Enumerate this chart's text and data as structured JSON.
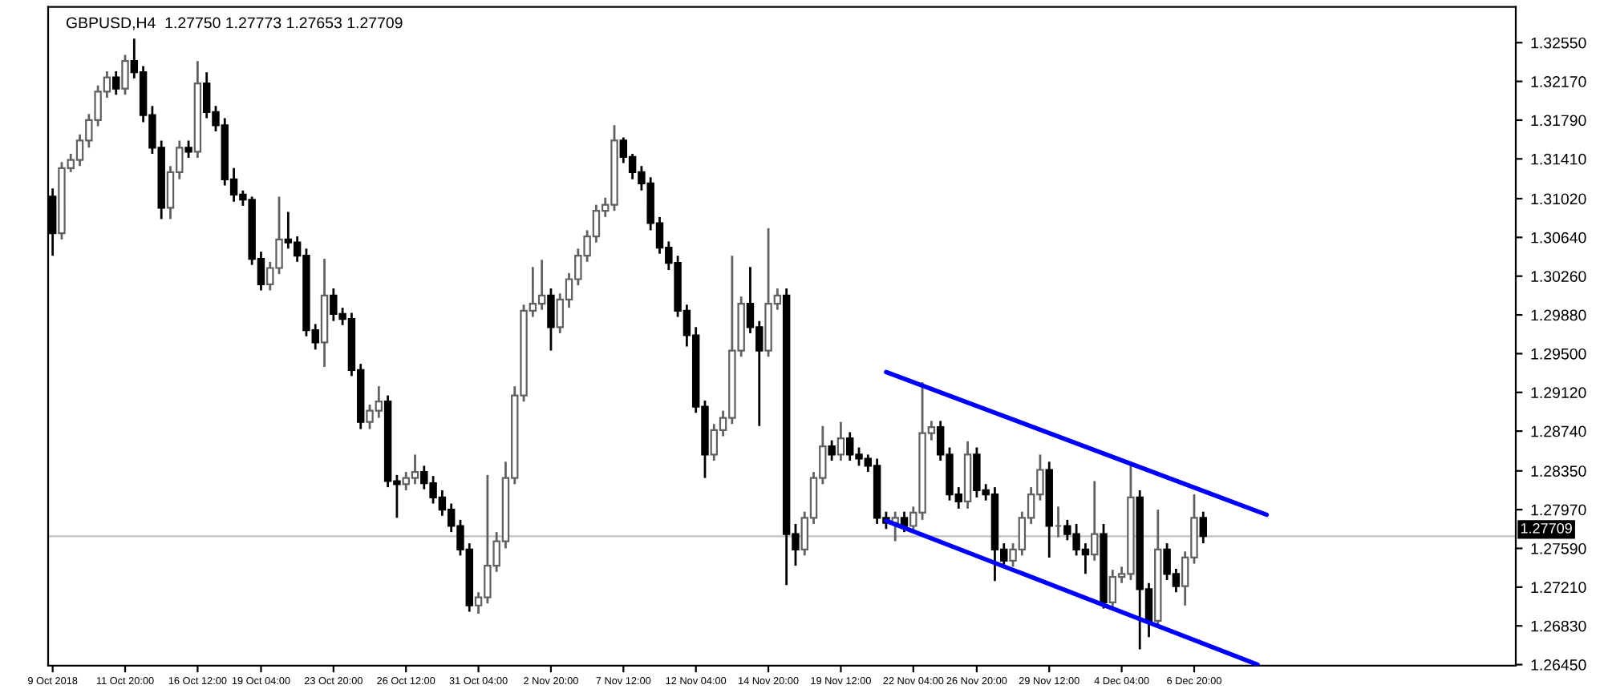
{
  "chart_data": {
    "type": "candlestick",
    "title": "GBPUSD,H4  1.27750 1.27773 1.27653 1.27709",
    "categories": [
      "9 Oct 2018",
      null,
      null,
      null,
      null,
      null,
      null,
      null,
      "11 Oct 20:00",
      null,
      null,
      null,
      null,
      null,
      null,
      null,
      "16 Oct 12:00",
      null,
      null,
      null,
      null,
      null,
      null,
      "19 Oct 04:00",
      null,
      null,
      null,
      null,
      null,
      null,
      null,
      "23 Oct 20:00",
      null,
      null,
      null,
      null,
      null,
      null,
      null,
      "26 Oct 12:00",
      null,
      null,
      null,
      null,
      null,
      null,
      null,
      "31 Oct 04:00",
      null,
      null,
      null,
      null,
      null,
      null,
      null,
      "2 Nov 20:00",
      null,
      null,
      null,
      null,
      null,
      null,
      null,
      "7 Nov 12:00",
      null,
      null,
      null,
      null,
      null,
      null,
      null,
      "12 Nov 04:00",
      null,
      null,
      null,
      null,
      null,
      null,
      null,
      "14 Nov 20:00",
      null,
      null,
      null,
      null,
      null,
      null,
      null,
      "19 Nov 12:00",
      null,
      null,
      null,
      null,
      null,
      null,
      null,
      "22 Nov 04:00",
      null,
      null,
      null,
      null,
      null,
      null,
      "26 Nov 20:00",
      null,
      null,
      null,
      null,
      null,
      null,
      null,
      "29 Nov 12:00",
      null,
      null,
      null,
      null,
      null,
      null,
      null,
      "4 Dec 04:00",
      null,
      null,
      null,
      null,
      null,
      null,
      null,
      "6 Dec 20:00",
      null,
      null,
      null,
      null,
      null,
      null,
      null,
      null,
      null,
      null,
      null,
      null,
      null,
      null,
      null,
      null,
      null,
      null,
      null,
      null,
      null,
      null,
      null,
      null,
      null,
      null,
      null,
      null,
      null,
      null,
      null,
      null,
      null,
      null,
      null
    ],
    "ohlc": [
      [
        1.3104,
        1.3112,
        1.3046,
        1.3068
      ],
      [
        1.3068,
        1.3138,
        1.3062,
        1.3132
      ],
      [
        1.3132,
        1.3146,
        1.3128,
        1.314
      ],
      [
        1.314,
        1.3165,
        1.3134,
        1.3159
      ],
      [
        1.3159,
        1.3185,
        1.3152,
        1.3179
      ],
      [
        1.3179,
        1.3213,
        1.3173,
        1.3207
      ],
      [
        1.3207,
        1.3227,
        1.3201,
        1.3221
      ],
      [
        1.3221,
        1.3227,
        1.3204,
        1.321
      ],
      [
        1.321,
        1.3243,
        1.3204,
        1.3237
      ],
      [
        1.3237,
        1.3259,
        1.322,
        1.3226
      ],
      [
        1.3226,
        1.3232,
        1.3177,
        1.3184
      ],
      [
        1.3184,
        1.3193,
        1.3146,
        1.3152
      ],
      [
        1.3152,
        1.3159,
        1.3082,
        1.3093
      ],
      [
        1.3093,
        1.3134,
        1.3082,
        1.3128
      ],
      [
        1.3128,
        1.3159,
        1.3121,
        1.3152
      ],
      [
        1.3152,
        1.3159,
        1.3142,
        1.3148
      ],
      [
        1.3148,
        1.3237,
        1.3142,
        1.3215
      ],
      [
        1.3215,
        1.3226,
        1.3181,
        1.3187
      ],
      [
        1.3187,
        1.3193,
        1.3168,
        1.3174
      ],
      [
        1.3174,
        1.3181,
        1.3115,
        1.3121
      ],
      [
        1.3121,
        1.3132,
        1.3099,
        1.3106
      ],
      [
        1.3106,
        1.311,
        1.3095,
        1.3101
      ],
      [
        1.3101,
        1.3104,
        1.3037,
        1.3043
      ],
      [
        1.3043,
        1.305,
        1.3012,
        1.3018
      ],
      [
        1.3018,
        1.304,
        1.3012,
        1.3034
      ],
      [
        1.3034,
        1.3104,
        1.3028,
        1.3062
      ],
      [
        1.3062,
        1.3089,
        1.3053,
        1.3059
      ],
      [
        1.3059,
        1.3065,
        1.304,
        1.3046
      ],
      [
        1.3046,
        1.3053,
        1.2967,
        1.2973
      ],
      [
        1.2973,
        1.2979,
        1.2954,
        1.2961
      ],
      [
        1.2961,
        1.3043,
        1.2937,
        1.3007
      ],
      [
        1.3007,
        1.3014,
        1.2982,
        1.2989
      ],
      [
        1.2989,
        1.2995,
        1.2978,
        1.2984
      ],
      [
        1.2984,
        1.299,
        1.2928,
        1.2934
      ],
      [
        1.2934,
        1.294,
        1.2876,
        1.2883
      ],
      [
        1.2883,
        1.29,
        1.2876,
        1.2894
      ],
      [
        1.2894,
        1.2918,
        1.2887,
        1.2903
      ],
      [
        1.2903,
        1.2909,
        1.2819,
        1.2825
      ],
      [
        1.2825,
        1.2831,
        1.2789,
        1.2822
      ],
      [
        1.2822,
        1.2834,
        1.2816,
        1.2828
      ],
      [
        1.2828,
        1.2851,
        1.2822,
        1.2834
      ],
      [
        1.2834,
        1.284,
        1.2817,
        1.2823
      ],
      [
        1.2823,
        1.283,
        1.2803,
        1.2809
      ],
      [
        1.2809,
        1.2816,
        1.2791,
        1.2797
      ],
      [
        1.2797,
        1.2803,
        1.2775,
        1.2781
      ],
      [
        1.2781,
        1.2787,
        1.2752,
        1.2758
      ],
      [
        1.2758,
        1.2764,
        1.2697,
        1.2703
      ],
      [
        1.2703,
        1.2716,
        1.2695,
        1.2711
      ],
      [
        1.2711,
        1.2831,
        1.2705,
        1.2742
      ],
      [
        1.2742,
        1.2775,
        1.2736,
        1.2766
      ],
      [
        1.2766,
        1.2844,
        1.2759,
        1.2828
      ],
      [
        1.2828,
        1.2918,
        1.2822,
        1.2909
      ],
      [
        1.2909,
        1.2998,
        1.2903,
        1.2992
      ],
      [
        1.2992,
        1.3035,
        1.2986,
        1.2999
      ],
      [
        1.2999,
        1.3042,
        1.2993,
        1.3007
      ],
      [
        1.3007,
        1.3014,
        1.2953,
        1.2976
      ],
      [
        1.2976,
        1.3009,
        1.297,
        1.3003
      ],
      [
        1.3003,
        1.3029,
        1.2995,
        1.3023
      ],
      [
        1.3023,
        1.3053,
        1.3017,
        1.3046
      ],
      [
        1.3046,
        1.3071,
        1.304,
        1.3065
      ],
      [
        1.3065,
        1.3096,
        1.3059,
        1.309
      ],
      [
        1.309,
        1.3103,
        1.3084,
        1.3096
      ],
      [
        1.3096,
        1.3174,
        1.309,
        1.3159
      ],
      [
        1.3159,
        1.3162,
        1.3137,
        1.3143
      ],
      [
        1.3143,
        1.3146,
        1.3121,
        1.3128
      ],
      [
        1.3128,
        1.3134,
        1.311,
        1.3117
      ],
      [
        1.3117,
        1.3123,
        1.3071,
        1.3078
      ],
      [
        1.3078,
        1.3084,
        1.3048,
        1.3054
      ],
      [
        1.3054,
        1.306,
        1.3032,
        1.3039
      ],
      [
        1.3039,
        1.3046,
        1.2986,
        1.2992
      ],
      [
        1.2992,
        1.2998,
        1.2957,
        1.2968
      ],
      [
        1.2968,
        1.2976,
        1.2892,
        1.2898
      ],
      [
        1.2898,
        1.2904,
        1.2828,
        1.2851
      ],
      [
        1.2851,
        1.2881,
        1.2845,
        1.2875
      ],
      [
        1.2875,
        1.2894,
        1.2869,
        1.2887
      ],
      [
        1.2887,
        1.3046,
        1.2881,
        1.2953
      ],
      [
        1.2953,
        1.3006,
        1.2947,
        1.2999
      ],
      [
        1.2999,
        1.3035,
        1.297,
        1.2976
      ],
      [
        1.2976,
        1.2982,
        1.2879,
        1.2953
      ],
      [
        1.2953,
        1.3073,
        1.2947,
        1.2999
      ],
      [
        1.2999,
        1.3014,
        1.2993,
        1.3007
      ],
      [
        1.3007,
        1.3014,
        1.2723,
        1.2773
      ],
      [
        1.2773,
        1.2783,
        1.2742,
        1.2758
      ],
      [
        1.2758,
        1.2795,
        1.2752,
        1.2789
      ],
      [
        1.2789,
        1.2834,
        1.2783,
        1.2828
      ],
      [
        1.2828,
        1.2879,
        1.2822,
        1.2859
      ],
      [
        1.2859,
        1.2865,
        1.2845,
        1.2851
      ],
      [
        1.2851,
        1.2883,
        1.2845,
        1.2867
      ],
      [
        1.2867,
        1.2873,
        1.2845,
        1.2851
      ],
      [
        1.2851,
        1.2858,
        1.284,
        1.2847
      ],
      [
        1.2847,
        1.2851,
        1.2834,
        1.284
      ],
      [
        1.284,
        1.2847,
        1.2783,
        1.2789
      ],
      [
        1.2789,
        1.2795,
        1.2778,
        1.2784
      ],
      [
        1.2784,
        1.2795,
        1.2766,
        1.2789
      ],
      [
        1.2789,
        1.2795,
        1.2775,
        1.2781
      ],
      [
        1.2781,
        1.28,
        1.2775,
        1.2794
      ],
      [
        1.2794,
        1.2922,
        1.2787,
        1.2872
      ],
      [
        1.2872,
        1.2884,
        1.2865,
        1.2878
      ],
      [
        1.2878,
        1.2884,
        1.2845,
        1.2851
      ],
      [
        1.2851,
        1.2858,
        1.2806,
        1.2812
      ],
      [
        1.2812,
        1.2819,
        1.2798,
        1.2805
      ],
      [
        1.2805,
        1.2864,
        1.2798,
        1.2851
      ],
      [
        1.2851,
        1.2858,
        1.2809,
        1.2816
      ],
      [
        1.2816,
        1.2822,
        1.2806,
        1.2812
      ],
      [
        1.2812,
        1.2819,
        1.2727,
        1.2758
      ],
      [
        1.2758,
        1.2764,
        1.2741,
        1.2747
      ],
      [
        1.2747,
        1.2764,
        1.2741,
        1.2758
      ],
      [
        1.2758,
        1.2795,
        1.2752,
        1.2789
      ],
      [
        1.2789,
        1.2819,
        1.2783,
        1.2812
      ],
      [
        1.2812,
        1.2851,
        1.2806,
        1.2836
      ],
      [
        1.2836,
        1.2844,
        1.275,
        1.2781
      ],
      [
        1.2781,
        1.28,
        1.277,
        1.2781
      ],
      [
        1.2781,
        1.2787,
        1.2767,
        1.2773
      ],
      [
        1.2773,
        1.2783,
        1.2752,
        1.2758
      ],
      [
        1.2758,
        1.2764,
        1.2734,
        1.2753
      ],
      [
        1.2753,
        1.2825,
        1.2747,
        1.2773
      ],
      [
        1.2773,
        1.2783,
        1.27,
        1.2706
      ],
      [
        1.2706,
        1.2738,
        1.27,
        1.2731
      ],
      [
        1.2731,
        1.2741,
        1.2725,
        1.2734
      ],
      [
        1.2734,
        1.2844,
        1.2728,
        1.2809
      ],
      [
        1.2809,
        1.2816,
        1.266,
        1.2719
      ],
      [
        1.2719,
        1.2725,
        1.2672,
        1.2688
      ],
      [
        1.2688,
        1.2797,
        1.2681,
        1.2758
      ],
      [
        1.2758,
        1.2764,
        1.2728,
        1.2734
      ],
      [
        1.2734,
        1.2739,
        1.2716,
        1.2722
      ],
      [
        1.2722,
        1.2756,
        1.2703,
        1.275
      ],
      [
        1.275,
        1.2812,
        1.2744,
        1.2789
      ],
      [
        1.2789,
        1.2795,
        1.2764,
        1.2771
      ],
      null,
      null,
      null,
      null,
      null,
      null,
      null,
      null,
      null,
      null,
      null,
      null,
      null,
      null,
      null,
      null,
      null,
      null,
      null,
      null,
      null,
      null,
      null,
      null,
      null,
      null,
      null,
      null,
      null,
      null,
      null,
      null,
      null,
      null
    ],
    "series": [
      {
        "type": "line",
        "color": "#0000ff",
        "values": [
          null,
          null,
          null,
          null,
          null,
          null,
          null,
          null,
          null,
          null,
          null,
          null,
          null,
          null,
          null,
          null,
          null,
          null,
          null,
          null,
          null,
          null,
          null,
          null,
          null,
          null,
          null,
          null,
          null,
          null,
          null,
          null,
          null,
          null,
          null,
          null,
          null,
          null,
          null,
          null,
          null,
          null,
          null,
          null,
          null,
          null,
          null,
          null,
          null,
          null,
          null,
          null,
          null,
          null,
          null,
          null,
          null,
          null,
          null,
          null,
          null,
          null,
          null,
          null,
          null,
          null,
          null,
          null,
          null,
          null,
          null,
          null,
          null,
          null,
          null,
          null,
          null,
          null,
          null,
          null,
          null,
          null,
          null,
          null,
          null,
          null,
          null,
          null,
          null,
          null,
          null,
          null,
          1.2932,
          null,
          null,
          null,
          null,
          null,
          null,
          null,
          null,
          null,
          null,
          null,
          null,
          null,
          null,
          null,
          null,
          null,
          null,
          null,
          null,
          null,
          null,
          null,
          null,
          null,
          null,
          null,
          null,
          null,
          null,
          null,
          null,
          null,
          null,
          null,
          null,
          null,
          null,
          null,
          null,
          null,
          1.2792,
          null,
          null,
          null,
          null,
          null,
          null,
          null,
          null,
          null,
          null,
          null,
          null,
          null,
          null,
          null,
          null,
          null,
          null,
          null,
          null,
          null,
          null,
          null,
          null,
          null,
          null,
          null
        ]
      },
      {
        "type": "line",
        "color": "#0000ff",
        "values": [
          null,
          null,
          null,
          null,
          null,
          null,
          null,
          null,
          null,
          null,
          null,
          null,
          null,
          null,
          null,
          null,
          null,
          null,
          null,
          null,
          null,
          null,
          null,
          null,
          null,
          null,
          null,
          null,
          null,
          null,
          null,
          null,
          null,
          null,
          null,
          null,
          null,
          null,
          null,
          null,
          null,
          null,
          null,
          null,
          null,
          null,
          null,
          null,
          null,
          null,
          null,
          null,
          null,
          null,
          null,
          null,
          null,
          null,
          null,
          null,
          null,
          null,
          null,
          null,
          null,
          null,
          null,
          null,
          null,
          null,
          null,
          null,
          null,
          null,
          null,
          null,
          null,
          null,
          null,
          null,
          null,
          null,
          null,
          null,
          null,
          null,
          null,
          null,
          null,
          null,
          null,
          null,
          1.2786,
          null,
          null,
          null,
          null,
          null,
          null,
          null,
          null,
          null,
          null,
          null,
          null,
          null,
          null,
          null,
          null,
          null,
          null,
          null,
          null,
          null,
          null,
          null,
          null,
          null,
          null,
          null,
          null,
          null,
          null,
          null,
          null,
          null,
          null,
          null,
          null,
          null,
          null,
          null,
          null,
          1.2645,
          null,
          null,
          null,
          null,
          null,
          null,
          null,
          null,
          null,
          null,
          null,
          null,
          null,
          null,
          null,
          null,
          null,
          null,
          null,
          null,
          null,
          null,
          null,
          null,
          null,
          null,
          null,
          null
        ]
      }
    ],
    "ylim": [
      1.2644,
      1.329
    ],
    "yticks": [
      {
        "value": 1.2645,
        "label": "1.26450"
      },
      {
        "value": 1.2683,
        "label": "1.26830"
      },
      {
        "value": 1.2721,
        "label": "1.27210"
      },
      {
        "value": 1.2759,
        "label": "1.27590"
      },
      {
        "value": 1.2797,
        "label": "1.27970"
      },
      {
        "value": 1.2835,
        "label": "1.28350"
      },
      {
        "value": 1.2874,
        "label": "1.28740"
      },
      {
        "value": 1.2912,
        "label": "1.29120"
      },
      {
        "value": 1.295,
        "label": "1.29500"
      },
      {
        "value": 1.2988,
        "label": "1.29880"
      },
      {
        "value": 1.3026,
        "label": "1.30260"
      },
      {
        "value": 1.3064,
        "label": "1.30640"
      },
      {
        "value": 1.3102,
        "label": "1.31020"
      },
      {
        "value": 1.3141,
        "label": "1.31410"
      },
      {
        "value": 1.3179,
        "label": "1.31790"
      },
      {
        "value": 1.3217,
        "label": "1.32170"
      },
      {
        "value": 1.3255,
        "label": "1.32550"
      }
    ],
    "ref_lines": [
      {
        "axis": "y",
        "value": 1.27709,
        "label": "1.27709",
        "color": "#c0c0c0"
      }
    ],
    "grid": false
  }
}
